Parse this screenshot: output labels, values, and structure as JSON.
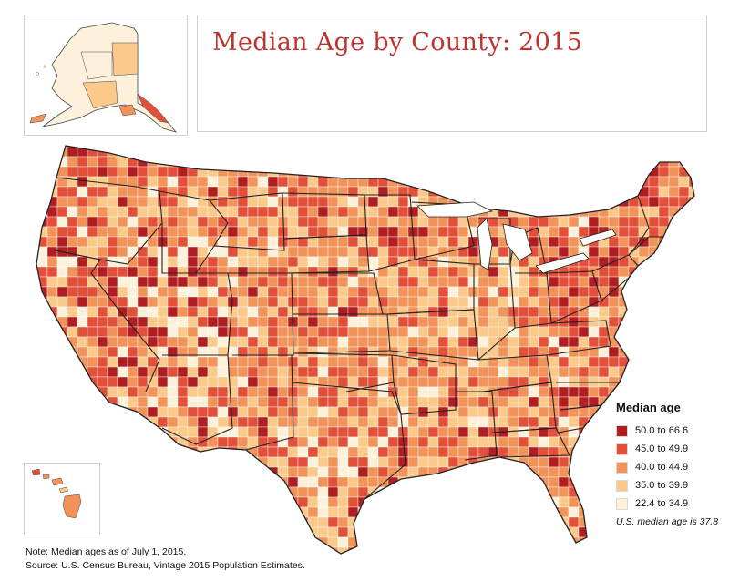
{
  "title": "Median Age by County: 2015",
  "legend": {
    "title": "Median age",
    "items": [
      {
        "label": "50.0 to 66.6",
        "color": "#b01e22"
      },
      {
        "label": "45.0 to 49.9",
        "color": "#e3503a"
      },
      {
        "label": "40.0 to 44.9",
        "color": "#f2945a"
      },
      {
        "label": "35.0 to 39.9",
        "color": "#fbc98a"
      },
      {
        "label": "22.4 to 34.9",
        "color": "#fdf1dc"
      }
    ],
    "us_median_note": "U.S. median age is 37.8"
  },
  "footnote": {
    "note": "Note: Median ages as of July 1, 2015.",
    "source": "Source: U.S. Census Bureau, Vintage 2015 Population Estimates."
  },
  "insets": [
    "Alaska",
    "Hawaii"
  ]
}
